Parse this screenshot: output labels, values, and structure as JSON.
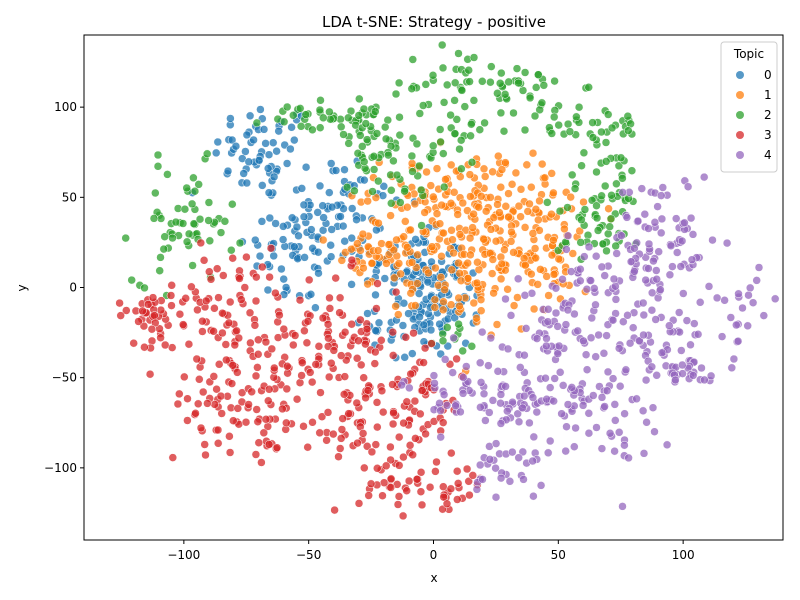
{
  "chart_data": {
    "type": "scatter",
    "title": "LDA t-SNE: Strategy - positive",
    "xlabel": "x",
    "ylabel": "y",
    "xlim": [
      -140,
      140
    ],
    "ylim": [
      -140,
      140
    ],
    "xticks": [
      -100,
      -50,
      0,
      50,
      100
    ],
    "yticks": [
      -100,
      -50,
      0,
      50,
      100
    ],
    "grid": false,
    "legend": {
      "title": "Topic",
      "placement": "top-right",
      "entries": [
        "0",
        "1",
        "2",
        "3",
        "4"
      ]
    },
    "series": [
      {
        "name": "0",
        "color": "#1f77b4",
        "clusters": [
          {
            "cx": -68,
            "cy": 75,
            "sx": 10,
            "sy": 14,
            "n": 60
          },
          {
            "cx": -40,
            "cy": 45,
            "sx": 14,
            "sy": 16,
            "n": 60
          },
          {
            "cx": -55,
            "cy": 20,
            "sx": 10,
            "sy": 18,
            "n": 55
          },
          {
            "cx": -8,
            "cy": 10,
            "sx": 10,
            "sy": 10,
            "n": 80
          },
          {
            "cx": -5,
            "cy": -20,
            "sx": 10,
            "sy": 12,
            "n": 50
          },
          {
            "cx": 5,
            "cy": -5,
            "sx": 8,
            "sy": 8,
            "n": 40
          }
        ]
      },
      {
        "name": "1",
        "color": "#ff7f0e",
        "clusters": [
          {
            "cx": 5,
            "cy": 55,
            "sx": 18,
            "sy": 10,
            "n": 80
          },
          {
            "cx": 10,
            "cy": 25,
            "sx": 20,
            "sy": 14,
            "n": 120
          },
          {
            "cx": 35,
            "cy": 40,
            "sx": 12,
            "sy": 14,
            "n": 60
          },
          {
            "cx": 20,
            "cy": 0,
            "sx": 14,
            "sy": 12,
            "n": 70
          },
          {
            "cx": -25,
            "cy": 15,
            "sx": 8,
            "sy": 10,
            "n": 30
          },
          {
            "cx": 45,
            "cy": 15,
            "sx": 10,
            "sy": 8,
            "n": 30
          }
        ]
      },
      {
        "name": "2",
        "color": "#2ca02c",
        "clusters": [
          {
            "cx": -100,
            "cy": 35,
            "sx": 10,
            "sy": 16,
            "n": 60
          },
          {
            "cx": -45,
            "cy": 93,
            "sx": 12,
            "sy": 4,
            "n": 30
          },
          {
            "cx": -30,
            "cy": 90,
            "sx": 6,
            "sy": 14,
            "n": 30
          },
          {
            "cx": -15,
            "cy": 75,
            "sx": 8,
            "sy": 20,
            "n": 50
          },
          {
            "cx": 10,
            "cy": 100,
            "sx": 8,
            "sy": 20,
            "n": 40
          },
          {
            "cx": 30,
            "cy": 112,
            "sx": 14,
            "sy": 6,
            "n": 40
          },
          {
            "cx": 60,
            "cy": 90,
            "sx": 14,
            "sy": 6,
            "n": 40
          },
          {
            "cx": 70,
            "cy": 50,
            "sx": 10,
            "sy": 16,
            "n": 50
          },
          {
            "cx": 60,
            "cy": 30,
            "sx": 8,
            "sy": 8,
            "n": 20
          },
          {
            "cx": 10,
            "cy": -30,
            "sx": 4,
            "sy": 6,
            "n": 10
          }
        ]
      },
      {
        "name": "3",
        "color": "#d62728",
        "clusters": [
          {
            "cx": -85,
            "cy": -10,
            "sx": 14,
            "sy": 16,
            "n": 80
          },
          {
            "cx": -115,
            "cy": -15,
            "sx": 6,
            "sy": 8,
            "n": 30
          },
          {
            "cx": -60,
            "cy": -40,
            "sx": 12,
            "sy": 16,
            "n": 60
          },
          {
            "cx": -80,
            "cy": -65,
            "sx": 14,
            "sy": 12,
            "n": 60
          },
          {
            "cx": -35,
            "cy": -25,
            "sx": 12,
            "sy": 16,
            "n": 60
          },
          {
            "cx": -10,
            "cy": -60,
            "sx": 12,
            "sy": 16,
            "n": 70
          },
          {
            "cx": -35,
            "cy": -80,
            "sx": 10,
            "sy": 14,
            "n": 40
          },
          {
            "cx": -10,
            "cy": -105,
            "sx": 10,
            "sy": 10,
            "n": 40
          },
          {
            "cx": 10,
            "cy": -115,
            "sx": 6,
            "sy": 6,
            "n": 15
          },
          {
            "cx": -65,
            "cy": -90,
            "sx": 4,
            "sy": 6,
            "n": 10
          }
        ]
      },
      {
        "name": "4",
        "color": "#9467bd",
        "clusters": [
          {
            "cx": 92,
            "cy": 25,
            "sx": 10,
            "sy": 20,
            "n": 80
          },
          {
            "cx": 65,
            "cy": 5,
            "sx": 12,
            "sy": 10,
            "n": 50
          },
          {
            "cx": 50,
            "cy": -25,
            "sx": 14,
            "sy": 12,
            "n": 60
          },
          {
            "cx": 90,
            "cy": -30,
            "sx": 10,
            "sy": 10,
            "n": 50
          },
          {
            "cx": 20,
            "cy": -60,
            "sx": 16,
            "sy": 12,
            "n": 70
          },
          {
            "cx": 50,
            "cy": -65,
            "sx": 12,
            "sy": 10,
            "n": 50
          },
          {
            "cx": 30,
            "cy": -100,
            "sx": 8,
            "sy": 8,
            "n": 30
          },
          {
            "cx": 75,
            "cy": -75,
            "sx": 8,
            "sy": 16,
            "n": 30
          },
          {
            "cx": 125,
            "cy": -10,
            "sx": 6,
            "sy": 12,
            "n": 20
          },
          {
            "cx": 100,
            "cy": -48,
            "sx": 8,
            "sy": 3,
            "n": 20
          }
        ]
      }
    ]
  }
}
